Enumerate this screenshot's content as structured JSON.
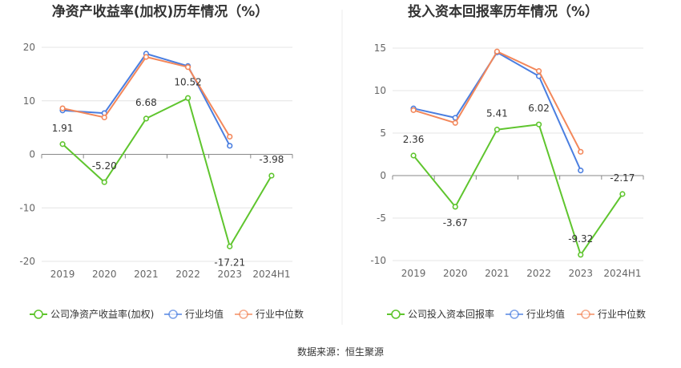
{
  "source_text": "数据来源：恒生聚源",
  "chart_data": [
    {
      "type": "line",
      "title": "净资产收益率(加权)历年情况（%）",
      "categories": [
        "2019",
        "2020",
        "2021",
        "2022",
        "2023",
        "2024H1"
      ],
      "ylim": [
        -20,
        20
      ],
      "yticks": [
        20,
        10,
        0,
        -10,
        -20
      ],
      "grid": true,
      "legend": "bottom",
      "series": [
        {
          "name": "公司净资产收益率(加权)",
          "color": "#5fc52e",
          "values": [
            1.91,
            -5.2,
            6.68,
            10.52,
            -17.21,
            -3.98
          ],
          "labels": [
            "1.91",
            "-5.20",
            "6.68",
            "10.52",
            "-17.21",
            "-3.98"
          ]
        },
        {
          "name": "行业均值",
          "color": "#4a7ee0",
          "values": [
            8.2,
            7.7,
            18.8,
            16.5,
            1.6,
            null
          ]
        },
        {
          "name": "行业中位数",
          "color": "#f3875a",
          "values": [
            8.6,
            6.9,
            18.2,
            16.3,
            3.3,
            null
          ]
        }
      ]
    },
    {
      "type": "line",
      "title": "投入资本回报率历年情况（%）",
      "categories": [
        "2019",
        "2020",
        "2021",
        "2022",
        "2023",
        "2024H1"
      ],
      "ylim": [
        -10,
        15
      ],
      "yticks": [
        15,
        10,
        5,
        0,
        -5,
        -10
      ],
      "grid": true,
      "legend": "bottom",
      "series": [
        {
          "name": "公司投入资本回报率",
          "color": "#5fc52e",
          "values": [
            2.36,
            -3.67,
            5.41,
            6.02,
            -9.32,
            -2.17
          ],
          "labels": [
            "2.36",
            "-3.67",
            "5.41",
            "6.02",
            "-9.32",
            "-2.17"
          ]
        },
        {
          "name": "行业均值",
          "color": "#4a7ee0",
          "values": [
            7.9,
            6.8,
            14.5,
            11.7,
            0.6,
            null
          ]
        },
        {
          "name": "行业中位数",
          "color": "#f3875a",
          "values": [
            7.7,
            6.2,
            14.6,
            12.3,
            2.8,
            null
          ]
        }
      ]
    }
  ]
}
